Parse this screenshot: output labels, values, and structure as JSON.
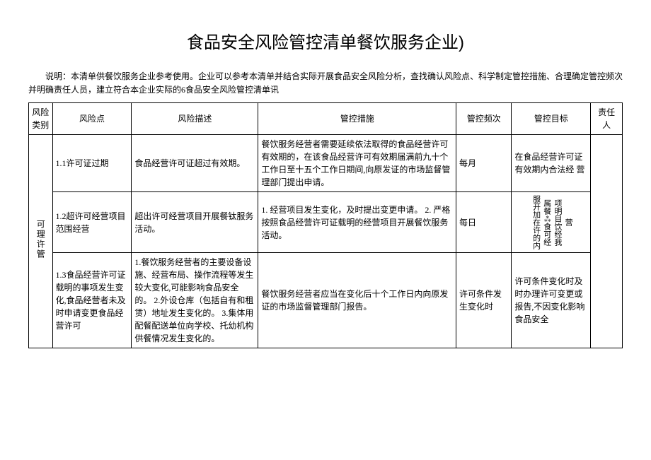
{
  "title": "食品安全风险管控清单餐饮服务企业)",
  "description": "说明：本清单供餐饮服务企业参考使用。企业可以参考本清单并结合实际开展食品安全风险分析，查找确认风险点、科学制定管控措施、合理确定管控频次并明确责任人员，建立符合本企业实际的6食品安全风险管控清单讯",
  "headers": {
    "category": "风险类别",
    "point": "风险点",
    "desc": "风险描述",
    "measure": "管控措施",
    "freq": "管控频次",
    "target": "管控目标",
    "person": "责任人"
  },
  "category_label": "可理许管",
  "rows": [
    {
      "point": "1.1许可证过期",
      "desc": "食品经营许可证超过有效期。",
      "measure": "餐饮服务经营者需要延续依法取得的食品经营许可有效期的，在该食品经营许可有效期届满前九十个工作日至十五个工作日期间,向原发证的市场监督管理部门提出申请。",
      "freq": "每月",
      "target": "在食品经营许可证有效期内合法经\n营"
    },
    {
      "point": "1.2超许可经营项目范围经营",
      "desc": "超出许可经营项目开展餐钛服务活动。",
      "measure": "1. 经营项目发生变化，及时提出变更申请。\n2. 严格按照食品经营许可证载明的经营项目开展餐饮服务活动。",
      "freq": "每日",
      "target_v": "服开加在许的内|属餐⁂食可经|项明目饮经我|营"
    },
    {
      "point": "1.3食品经营许可证载明的事项发生变化,食品经营者未及时申请变更食品经营许可",
      "desc": "1.餐饮服务经营者的主要设备设施、经营布局、操作流程等发生较大变化,可能影响食品安全的。\n2.外设仓库（包括自有和租赁）地址发生变化的。\n3.集体用配餐配送单位向学校、托幼机构供餐情况发生变化的。",
      "measure": "餐饮服务经营者应当在变化后十个工作日内向原发证的市场监督管理部门报告。",
      "freq": "许可条件发生变化时",
      "target": "许可条件变化时及时办理许可变更或报告,不因变化影响食品安全"
    }
  ]
}
